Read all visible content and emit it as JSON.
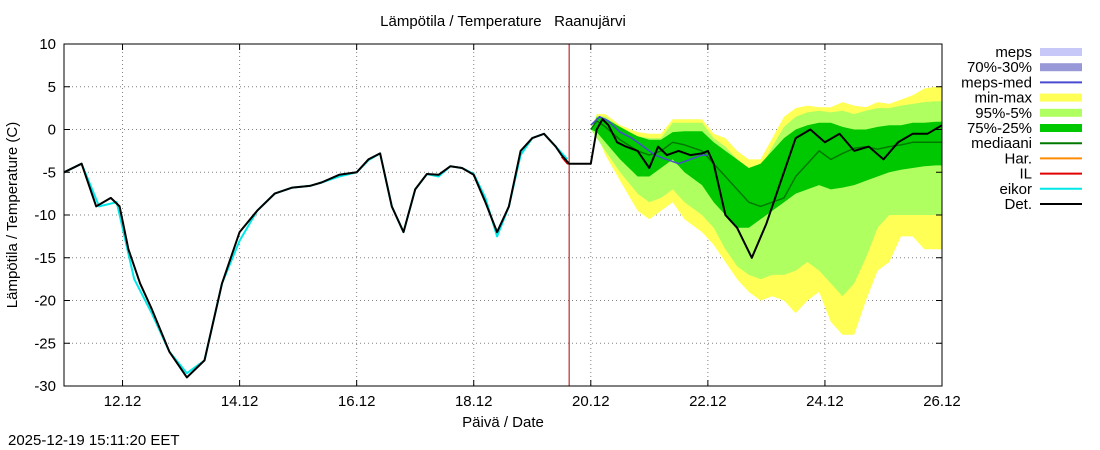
{
  "chart_data": {
    "type": "line",
    "title": "Lämpötila / Temperature   Raanujärvi",
    "xlabel": "Päivä / Date",
    "ylabel": "Lämpötila / Temperature (C)",
    "timestamp": "2025-12-19 15:11:20 EET",
    "x_unit": "days since 2025-12-11 00:00",
    "xlim": [
      0,
      15
    ],
    "ylim": [
      -30,
      10
    ],
    "xticks": [
      {
        "x": 1,
        "label": "12.12"
      },
      {
        "x": 3,
        "label": "14.12"
      },
      {
        "x": 5,
        "label": "16.12"
      },
      {
        "x": 7,
        "label": "18.12"
      },
      {
        "x": 9,
        "label": "20.12"
      },
      {
        "x": 11,
        "label": "22.12"
      },
      {
        "x": 13,
        "label": "24.12"
      },
      {
        "x": 15,
        "label": "26.12"
      }
    ],
    "yticks": [
      10,
      5,
      0,
      -5,
      -10,
      -15,
      -20,
      -25,
      -30
    ],
    "now_x": 8.63,
    "colors": {
      "meps": "#c8c8f8",
      "p70_30": "#9898d8",
      "meps_med": "#4a4ad0",
      "minmax": "#ffff55",
      "p95_5": "#b0ff60",
      "p75_25": "#00c800",
      "mediaani": "#007800",
      "har": "#ff8c00",
      "il": "#e00000",
      "eikor": "#00e8e8",
      "det": "#000000",
      "grid": "#808080",
      "now_line": "#b00000"
    },
    "legend": [
      {
        "label": "meps",
        "key": "meps",
        "style": "band"
      },
      {
        "label": "70%-30%",
        "key": "p70_30",
        "style": "band"
      },
      {
        "label": "meps-med",
        "key": "meps_med",
        "style": "line"
      },
      {
        "label": "min-max",
        "key": "minmax",
        "style": "band"
      },
      {
        "label": "95%-5%",
        "key": "p95_5",
        "style": "band"
      },
      {
        "label": "75%-25%",
        "key": "p75_25",
        "style": "band"
      },
      {
        "label": "mediaani",
        "key": "mediaani",
        "style": "line"
      },
      {
        "label": "Har.",
        "key": "har",
        "style": "line"
      },
      {
        "label": "IL",
        "key": "il",
        "style": "line"
      },
      {
        "label": "eikor",
        "key": "eikor",
        "style": "line"
      },
      {
        "label": "Det.",
        "key": "det",
        "style": "line"
      }
    ],
    "bands": {
      "minmax": {
        "x": [
          9.0,
          9.1,
          9.25,
          9.5,
          9.8,
          10.0,
          10.2,
          10.4,
          10.6,
          10.9,
          11.1,
          11.3,
          11.5,
          11.7,
          11.9,
          12.1,
          12.3,
          12.5,
          12.7,
          12.9,
          13.1,
          13.3,
          13.5,
          13.7,
          13.9,
          14.1,
          14.3,
          14.5,
          14.7,
          14.9,
          15.0
        ],
        "upper": [
          0.0,
          1.8,
          1.8,
          0.5,
          -0.3,
          -0.5,
          -0.5,
          1.2,
          1.2,
          1.2,
          -0.5,
          -1.0,
          -2.5,
          -3.5,
          -3.5,
          -1.0,
          1.5,
          2.5,
          2.8,
          2.6,
          2.6,
          3.2,
          2.8,
          2.6,
          3.2,
          3.0,
          3.5,
          4.0,
          4.8,
          5.0,
          5.0
        ],
        "lower": [
          0.0,
          -0.5,
          -3.0,
          -6.0,
          -9.5,
          -10.5,
          -9.5,
          -8.5,
          -10.5,
          -12.0,
          -13.5,
          -15.5,
          -17.5,
          -19.0,
          -20.0,
          -19.5,
          -20.0,
          -21.5,
          -20.0,
          -19.0,
          -22.5,
          -24.0,
          -24.0,
          -20.0,
          -16.5,
          -15.5,
          -12.5,
          -12.5,
          -14.0,
          -14.0,
          -14.0
        ]
      },
      "p95_5": {
        "x": [
          9.0,
          9.1,
          9.25,
          9.5,
          9.8,
          10.0,
          10.2,
          10.4,
          10.6,
          10.9,
          11.1,
          11.3,
          11.5,
          11.7,
          11.9,
          12.1,
          12.3,
          12.5,
          12.7,
          12.9,
          13.1,
          13.3,
          13.5,
          13.7,
          13.9,
          14.1,
          14.3,
          14.5,
          14.7,
          14.9,
          15.0
        ],
        "upper": [
          0.0,
          1.6,
          1.5,
          0.2,
          -0.8,
          -1.0,
          -1.0,
          0.8,
          0.8,
          0.8,
          -1.0,
          -2.0,
          -3.5,
          -4.5,
          -4.5,
          -2.0,
          0.3,
          1.5,
          2.0,
          2.2,
          2.0,
          2.2,
          1.8,
          2.2,
          2.5,
          2.5,
          2.8,
          3.0,
          3.2,
          3.3,
          3.3
        ],
        "lower": [
          0.0,
          -1.0,
          -2.5,
          -5.0,
          -7.5,
          -8.5,
          -8.0,
          -7.0,
          -8.5,
          -10.0,
          -11.5,
          -14.0,
          -16.0,
          -17.0,
          -17.5,
          -17.0,
          -17.0,
          -16.5,
          -15.5,
          -16.5,
          -18.0,
          -19.5,
          -18.0,
          -15.0,
          -11.5,
          -10.0,
          -10.0,
          -10.0,
          -10.0,
          -10.0,
          -10.0
        ]
      },
      "p75_25": {
        "x": [
          9.0,
          9.1,
          9.25,
          9.5,
          9.8,
          10.0,
          10.2,
          10.4,
          10.6,
          10.9,
          11.1,
          11.3,
          11.5,
          11.7,
          11.9,
          12.1,
          12.3,
          12.5,
          12.7,
          12.9,
          13.1,
          13.3,
          13.5,
          13.7,
          13.9,
          14.1,
          14.3,
          14.5,
          14.7,
          14.9,
          15.0
        ],
        "upper": [
          0.0,
          1.4,
          1.3,
          0.3,
          -0.8,
          -1.2,
          -1.2,
          -0.3,
          -0.2,
          -0.2,
          -1.5,
          -2.5,
          -3.5,
          -4.5,
          -4.0,
          -2.5,
          -1.0,
          0.0,
          0.5,
          0.8,
          0.8,
          0.3,
          0.0,
          0.0,
          0.3,
          0.5,
          0.5,
          0.8,
          0.8,
          0.9,
          0.9
        ],
        "lower": [
          0.0,
          -0.3,
          -1.5,
          -3.5,
          -5.5,
          -5.5,
          -4.5,
          -3.5,
          -5.0,
          -6.5,
          -8.5,
          -10.0,
          -11.5,
          -11.5,
          -10.5,
          -9.5,
          -8.5,
          -7.5,
          -7.0,
          -6.5,
          -7.0,
          -6.8,
          -6.5,
          -6.0,
          -5.5,
          -5.0,
          -4.7,
          -4.5,
          -4.3,
          -4.2,
          -4.2
        ]
      }
    },
    "series": [
      {
        "name": "mediaani",
        "key": "mediaani",
        "width": 1.5,
        "x": [
          9.0,
          9.1,
          9.25,
          9.5,
          9.8,
          10.0,
          10.2,
          10.4,
          10.6,
          10.9,
          11.1,
          11.3,
          11.5,
          11.7,
          11.9,
          12.1,
          12.3,
          12.5,
          12.7,
          12.9,
          13.1,
          13.3,
          13.5,
          13.7,
          13.9,
          14.1,
          14.3,
          14.5,
          14.7,
          14.9,
          15.0
        ],
        "y": [
          0.0,
          1.0,
          0.3,
          -1.2,
          -2.5,
          -3.0,
          -2.5,
          -1.5,
          -1.8,
          -2.5,
          -4.0,
          -5.5,
          -7.0,
          -8.5,
          -9.0,
          -8.5,
          -8.0,
          -5.5,
          -4.0,
          -2.5,
          -3.5,
          -2.8,
          -2.2,
          -2.0,
          -2.3,
          -2.0,
          -1.8,
          -1.5,
          -1.5,
          -1.5,
          -1.5
        ]
      },
      {
        "name": "meps-med",
        "key": "meps_med",
        "width": 1.5,
        "x": [
          9.0,
          9.15,
          9.3,
          9.5,
          9.7,
          9.9,
          10.1,
          10.3,
          10.5,
          10.7,
          10.9,
          11.0
        ],
        "y": [
          0.5,
          1.5,
          1.0,
          -0.3,
          -1.0,
          -2.0,
          -3.0,
          -3.5,
          -4.0,
          -3.5,
          -3.0,
          -3.0
        ]
      },
      {
        "name": "eikor",
        "key": "eikor",
        "width": 2,
        "x": [
          0.0,
          0.3,
          0.6,
          0.9,
          1.2,
          1.5,
          1.8,
          2.1,
          2.4,
          2.7,
          3.0,
          3.3,
          3.6,
          3.9,
          4.2,
          4.4,
          4.7,
          5.0,
          5.2,
          5.4,
          5.6,
          5.8,
          6.0,
          6.2,
          6.4,
          6.6,
          6.8,
          7.0,
          7.2,
          7.4,
          7.6,
          7.8,
          8.0,
          8.2,
          8.4,
          8.6
        ],
        "y": [
          -5.0,
          -4.0,
          -9.0,
          -8.5,
          -17.5,
          -21.5,
          -26.0,
          -28.5,
          -27.0,
          -18.0,
          -13.0,
          -9.5,
          -7.5,
          -6.8,
          -6.6,
          -6.2,
          -5.5,
          -5.0,
          -3.6,
          -2.8,
          -9.0,
          -12.0,
          -7.0,
          -5.2,
          -5.5,
          -4.3,
          -4.5,
          -5.2,
          -8.0,
          -12.5,
          -9.0,
          -3.0,
          -1.0,
          -0.5,
          -2.0,
          -3.5
        ]
      },
      {
        "name": "IL",
        "key": "il",
        "width": 1.5,
        "x": [
          8.5,
          8.6,
          8.7
        ],
        "y": [
          -3.2,
          -4.0,
          -4.0
        ]
      },
      {
        "name": "Det.",
        "key": "det",
        "width": 2,
        "x": [
          0.0,
          0.3,
          0.55,
          0.8,
          0.95,
          1.1,
          1.3,
          1.5,
          1.8,
          2.1,
          2.4,
          2.7,
          3.0,
          3.3,
          3.6,
          3.9,
          4.2,
          4.4,
          4.7,
          5.0,
          5.2,
          5.4,
          5.6,
          5.8,
          6.0,
          6.2,
          6.4,
          6.6,
          6.8,
          7.0,
          7.2,
          7.4,
          7.6,
          7.8,
          8.0,
          8.2,
          8.4,
          8.5,
          8.63,
          8.7,
          8.9,
          9.0,
          9.1,
          9.2,
          9.3,
          9.45,
          9.6,
          9.8,
          10.0,
          10.15,
          10.3,
          10.5,
          10.7,
          10.9,
          11.0,
          11.1,
          11.3,
          11.5,
          11.75,
          12.0,
          12.25,
          12.5,
          12.75,
          13.0,
          13.25,
          13.5,
          13.75,
          14.0,
          14.25,
          14.5,
          14.75,
          15.0
        ],
        "y": [
          -5.0,
          -4.0,
          -9.0,
          -8.0,
          -9.0,
          -14.0,
          -18.0,
          -21.0,
          -26.0,
          -29.0,
          -27.0,
          -18.0,
          -12.0,
          -9.5,
          -7.5,
          -6.8,
          -6.6,
          -6.2,
          -5.3,
          -5.0,
          -3.5,
          -2.8,
          -9.0,
          -12.0,
          -7.0,
          -5.2,
          -5.3,
          -4.3,
          -4.5,
          -5.3,
          -8.5,
          -12.0,
          -9.0,
          -2.5,
          -1.0,
          -0.5,
          -2.0,
          -3.0,
          -4.0,
          -4.0,
          -4.0,
          -4.0,
          0.0,
          1.2,
          0.5,
          -1.5,
          -2.0,
          -2.5,
          -4.5,
          -2.0,
          -3.0,
          -2.5,
          -3.0,
          -2.8,
          -2.5,
          -4.0,
          -10.0,
          -11.5,
          -15.0,
          -11.0,
          -6.0,
          -1.0,
          0.0,
          -1.5,
          -0.5,
          -2.5,
          -2.0,
          -3.5,
          -1.5,
          -0.5,
          -0.5,
          0.5
        ]
      }
    ]
  }
}
